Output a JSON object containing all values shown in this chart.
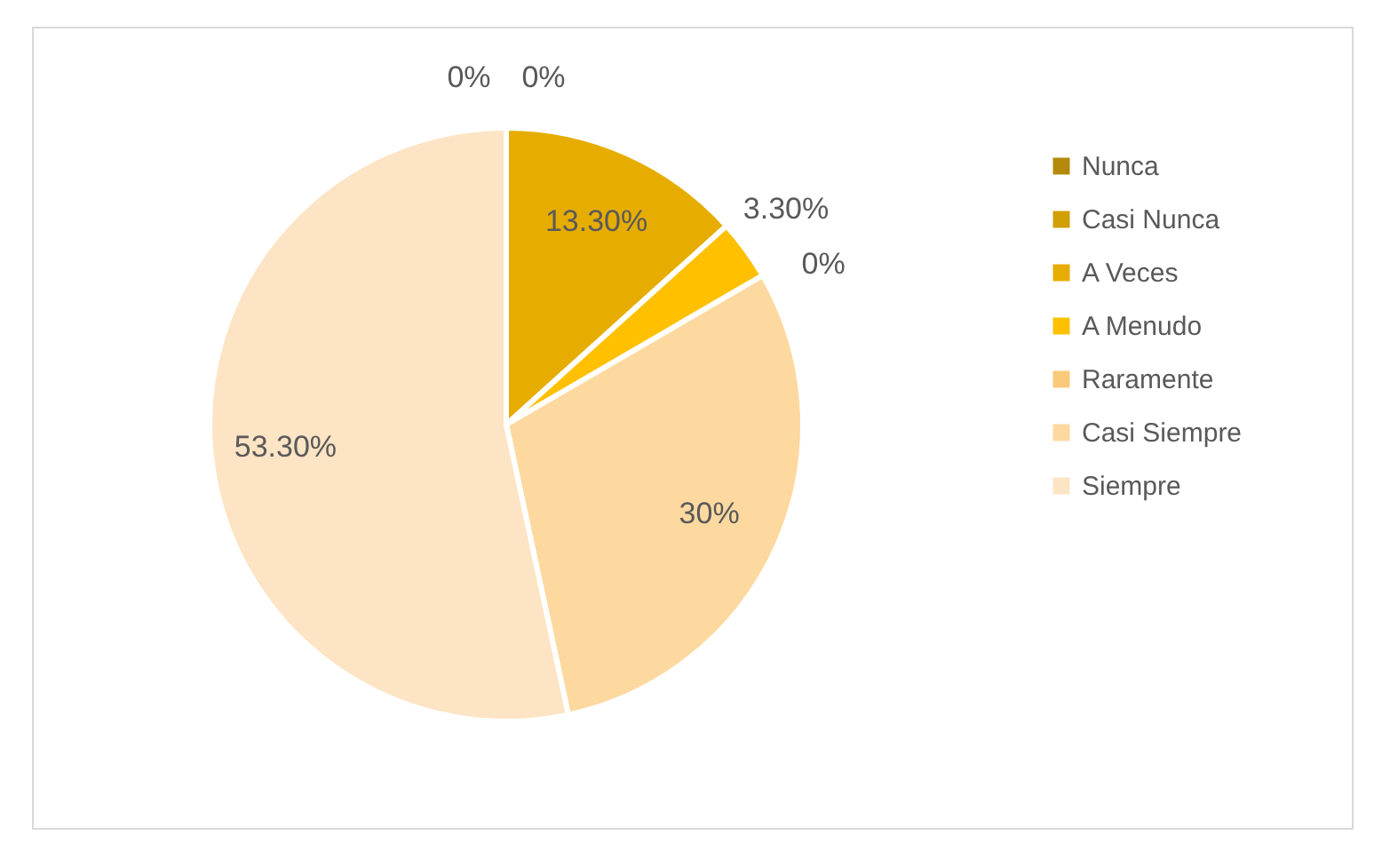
{
  "chart_data": {
    "type": "pie",
    "categories": [
      "Nunca",
      "Casi Nunca",
      "A Veces",
      "A Menudo",
      "Raramente",
      "Casi Siempre",
      "Siempre"
    ],
    "values": [
      0,
      0,
      13.3,
      3.3,
      0,
      30,
      53.3
    ],
    "value_labels": [
      "0%",
      "0%",
      "13.30%",
      "3.30%",
      "0%",
      "30%",
      "53.30%"
    ],
    "colors": [
      "#b58a0c",
      "#d19f06",
      "#e6ad00",
      "#ffc000",
      "#f9ca7b",
      "#fdd9a0",
      "#fde4c4"
    ],
    "legend": "right"
  }
}
